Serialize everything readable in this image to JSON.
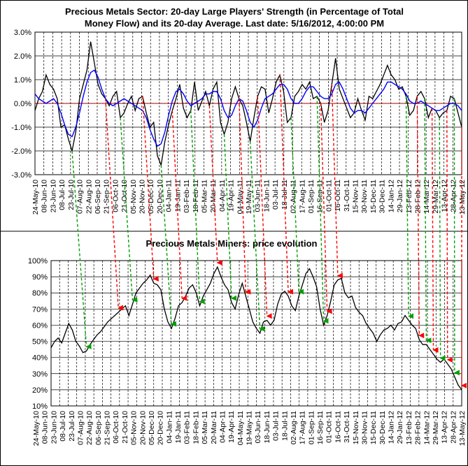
{
  "chart_data": [
    {
      "type": "line",
      "title_lines": [
        "Precious Metals Sector: 20-day Large Players' Strength (in Percentage of Total",
        "Money Flow) and its 20-day Average. Last date: 5/16/2012, 4:00:00 PM"
      ],
      "y_ticks": [
        "3.0%",
        "2.0%",
        "1.0%",
        "0.0%",
        "-1.0%",
        "-2.0%",
        "-3.0%"
      ],
      "ylim": [
        -3.0,
        3.0
      ],
      "grid": true,
      "zero_line": true,
      "x_labels": [
        "24-May-10",
        "08-Jun-10",
        "23-Jun-10",
        "08-Jul-10",
        "23-Jul-10",
        "07-Aug-10",
        "22-Aug-10",
        "06-Sep-10",
        "21-Sep-10",
        "06-Oct-10",
        "21-Oct-10",
        "05-Nov-10",
        "20-Nov-10",
        "05-Dec-10",
        "20-Dec-10",
        "04-Jan-11",
        "19-Jan-11",
        "03-Feb-11",
        "18-Feb-11",
        "05-Mar-11",
        "20-Mar-11",
        "04-Apr-11",
        "19-Apr-11",
        "04-May-11",
        "19-May-11",
        "03-Jun-11",
        "18-Jun-11",
        "03-Jul-11",
        "18-Jul-11",
        "02-Aug-11",
        "17-Aug-11",
        "01-Sep-11",
        "16-Sep-11",
        "01-Oct-11",
        "16-Oct-11",
        "31-Oct-11",
        "15-Nov-11",
        "30-Nov-11",
        "15-Dec-11",
        "30-Dec-11",
        "14-Jan-12",
        "29-Jan-12",
        "13-Feb-12",
        "28-Feb-12",
        "14-Mar-12",
        "29-Mar-12",
        "13-Apr-12",
        "28-Apr-12",
        "13-May-12"
      ],
      "series": [
        {
          "color": "#000000",
          "values": [
            -0.3,
            0.2,
            0.5,
            1.2,
            0.8,
            0.6,
            0.2,
            -1.0,
            -0.9,
            -1.5,
            -2.0,
            -1.2,
            0.2,
            0.8,
            1.4,
            2.6,
            1.7,
            0.8,
            0.4,
            0.2,
            -0.1,
            0.3,
            0.5,
            -0.6,
            -0.4,
            0.0,
            0.3,
            -0.3,
            0.2,
            0.3,
            -0.4,
            -1.0,
            -0.8,
            -2.2,
            -2.6,
            -1.6,
            -0.9,
            -0.3,
            0.2,
            0.8,
            -0.2,
            -0.6,
            -0.3,
            0.9,
            -0.3,
            0.1,
            0.5,
            -0.1,
            0.6,
            0.9,
            -0.8,
            -1.3,
            -0.8,
            0.2,
            0.7,
            0.2,
            -0.1,
            -0.8,
            -1.6,
            -0.6,
            0.3,
            0.7,
            0.6,
            -0.4,
            0.2,
            0.9,
            1.2,
            0.5,
            -0.8,
            -0.6,
            0.3,
            0.5,
            0.8,
            0.6,
            0.9,
            0.2,
            0.3,
            0.0,
            -0.8,
            -0.3,
            0.8,
            1.9,
            0.6,
            0.2,
            -0.2,
            -0.6,
            -0.4,
            0.2,
            -0.3,
            -0.7,
            0.3,
            0.2,
            0.5,
            0.8,
            1.2,
            1.6,
            1.2,
            1.0,
            0.6,
            0.7,
            0.3,
            -0.5,
            -0.3,
            0.3,
            0.5,
            0.2,
            -0.6,
            -0.2,
            -0.3,
            -0.6,
            -0.4,
            -0.3,
            0.3,
            0.2,
            -0.4,
            -1.0
          ]
        },
        {
          "color": "#0000ff",
          "values": [
            0.4,
            0.2,
            0.1,
            0.0,
            0.1,
            0.2,
            0.0,
            -0.4,
            -0.9,
            -1.3,
            -1.4,
            -1.0,
            -0.4,
            0.3,
            0.9,
            1.3,
            1.4,
            1.1,
            0.6,
            0.2,
            0.0,
            -0.1,
            0.0,
            0.1,
            0.2,
            0.1,
            0.0,
            -0.1,
            -0.2,
            -0.3,
            -0.6,
            -1.1,
            -1.5,
            -1.8,
            -1.7,
            -1.2,
            -0.5,
            0.1,
            0.5,
            0.6,
            0.4,
            0.1,
            -0.1,
            0.0,
            0.1,
            0.2,
            0.4,
            0.4,
            0.5,
            0.5,
            0.2,
            -0.3,
            -0.6,
            -0.5,
            -0.1,
            0.2,
            0.1,
            -0.3,
            -0.8,
            -1.0,
            -0.7,
            -0.2,
            0.2,
            0.3,
            0.4,
            0.6,
            0.8,
            0.8,
            0.6,
            0.2,
            0.0,
            0.0,
            0.2,
            0.5,
            0.7,
            0.7,
            0.5,
            0.3,
            0.2,
            0.2,
            0.4,
            0.8,
            0.9,
            0.6,
            0.2,
            -0.2,
            -0.4,
            -0.3,
            -0.3,
            -0.4,
            -0.2,
            0.0,
            0.2,
            0.4,
            0.6,
            0.9,
            0.9,
            0.8,
            0.7,
            0.6,
            0.4,
            0.1,
            0.0,
            0.0,
            0.1,
            0.0,
            -0.1,
            -0.2,
            -0.3,
            -0.3,
            -0.2,
            -0.1,
            0.0,
            0.0,
            -0.1,
            -0.3
          ]
        }
      ]
    },
    {
      "type": "line",
      "title": "Precious Metals Miners: price evolution",
      "y_ticks": [
        "100%",
        "90%",
        "80%",
        "70%",
        "60%",
        "50%",
        "40%",
        "30%",
        "20%",
        "10%"
      ],
      "ylim": [
        10,
        100
      ],
      "grid": true,
      "x_labels": [
        "24-May-10",
        "08-Jun-10",
        "23-Jun-10",
        "08-Jul-10",
        "23-Jul-10",
        "07-Aug-10",
        "22-Aug-10",
        "06-Sep-10",
        "21-Sep-10",
        "06-Oct-10",
        "21-Oct-10",
        "05-Nov-10",
        "20-Nov-10",
        "05-Dec-10",
        "20-Dec-10",
        "04-Jan-11",
        "19-Jan-11",
        "03-Feb-11",
        "18-Feb-11",
        "05-Mar-11",
        "20-Mar-11",
        "04-Apr-11",
        "19-Apr-11",
        "04-May-11",
        "19-May-11",
        "03-Jun-11",
        "18-Jun-11",
        "03-Jul-11",
        "18-Jul-11",
        "02-Aug-11",
        "17-Aug-11",
        "01-Sep-11",
        "16-Sep-11",
        "01-Oct-11",
        "16-Oct-11",
        "31-Oct-11",
        "15-Nov-11",
        "30-Nov-11",
        "15-Dec-11",
        "30-Dec-11",
        "14-Jan-12",
        "29-Jan-12",
        "13-Feb-12",
        "28-Feb-12",
        "14-Mar-12",
        "29-Mar-12",
        "13-Apr-12",
        "28-Apr-12",
        "13-May-12"
      ],
      "series": [
        {
          "color": "#000000",
          "values": [
            46,
            50,
            52,
            49,
            55,
            61,
            57,
            50,
            47,
            43,
            44,
            48,
            51,
            54,
            56,
            59,
            62,
            64,
            66,
            68,
            70,
            72,
            66,
            73,
            80,
            83,
            86,
            88,
            91,
            86,
            85,
            82,
            70,
            62,
            58,
            64,
            72,
            74,
            78,
            83,
            85,
            80,
            72,
            78,
            82,
            86,
            92,
            96,
            90,
            85,
            82,
            74,
            70,
            79,
            86,
            78,
            70,
            62,
            58,
            55,
            62,
            63,
            60,
            63,
            73,
            79,
            81,
            78,
            72,
            69,
            78,
            85,
            92,
            95,
            90,
            84,
            70,
            60,
            66,
            75,
            85,
            88,
            89,
            80,
            77,
            78,
            71,
            68,
            66,
            61,
            58,
            55,
            50,
            54,
            57,
            58,
            60,
            57,
            61,
            62,
            66,
            63,
            60,
            58,
            51,
            48,
            48,
            45,
            42,
            39,
            37,
            39,
            36,
            33,
            28,
            23,
            20
          ]
        }
      ],
      "arrows": [
        {
          "top_index": 10,
          "color": "green"
        },
        {
          "top_index": 19,
          "color": "red"
        },
        {
          "top_index": 23,
          "color": "green"
        },
        {
          "top_index": 29,
          "color": "red"
        },
        {
          "top_index": 34,
          "color": "green"
        },
        {
          "top_index": 37,
          "color": "red"
        },
        {
          "top_index": 42,
          "color": "green"
        },
        {
          "top_index": 47,
          "color": "red"
        },
        {
          "top_index": 51,
          "color": "green"
        },
        {
          "top_index": 55,
          "color": "red"
        },
        {
          "top_index": 58,
          "color": "green"
        },
        {
          "top_index": 60,
          "color": "red"
        },
        {
          "top_index": 66,
          "color": "red"
        },
        {
          "top_index": 69,
          "color": "green"
        },
        {
          "top_index": 76,
          "color": "green"
        },
        {
          "top_index": 77,
          "color": "red"
        },
        {
          "top_index": 80,
          "color": "red"
        },
        {
          "top_index": 100,
          "color": "green"
        },
        {
          "top_index": 103,
          "color": "red"
        },
        {
          "top_index": 105,
          "color": "green"
        },
        {
          "top_index": 107,
          "color": "red"
        },
        {
          "top_index": 109,
          "color": "green"
        },
        {
          "top_index": 111,
          "color": "red"
        },
        {
          "top_index": 113,
          "color": "green"
        },
        {
          "top_index": 115,
          "color": "red"
        }
      ]
    }
  ]
}
